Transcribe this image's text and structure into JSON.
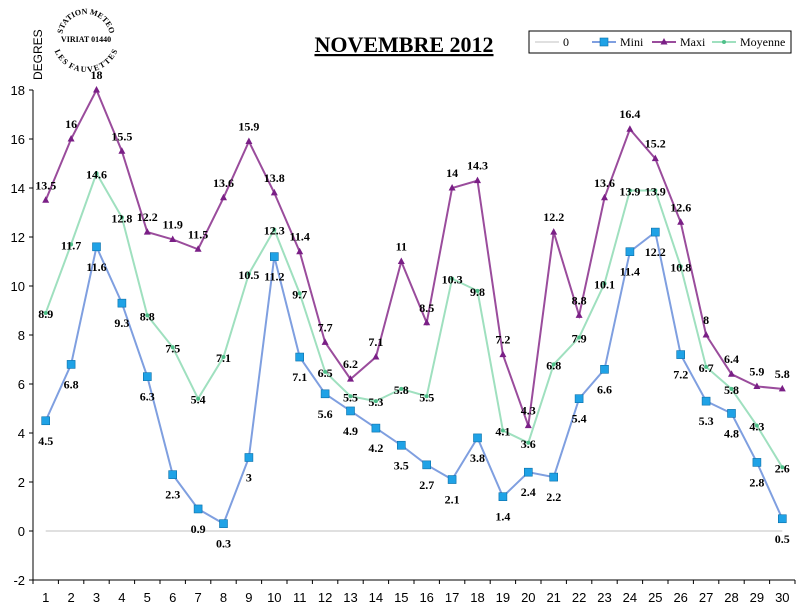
{
  "chart_data": {
    "type": "line",
    "title": "NOVEMBRE 2012",
    "ylabel": "DEGRES",
    "xlabel": "",
    "ylim": [
      -2,
      18
    ],
    "yticks": [
      -2,
      0,
      2,
      4,
      6,
      8,
      10,
      12,
      14,
      16,
      18
    ],
    "categories": [
      "1",
      "2",
      "3",
      "4",
      "5",
      "6",
      "7",
      "8",
      "9",
      "10",
      "11",
      "12",
      "13",
      "14",
      "15",
      "16",
      "17",
      "18",
      "19",
      "20",
      "21",
      "22",
      "23",
      "24",
      "25",
      "26",
      "27",
      "28",
      "29",
      "30"
    ],
    "legend_position": "top-right",
    "grid": false,
    "series": [
      {
        "name": "0",
        "color": "#c0c0c0",
        "marker": "none",
        "values": [
          0,
          0,
          0,
          0,
          0,
          0,
          0,
          0,
          0,
          0,
          0,
          0,
          0,
          0,
          0,
          0,
          0,
          0,
          0,
          0,
          0,
          0,
          0,
          0,
          0,
          0,
          0,
          0,
          0,
          0
        ],
        "show_labels": false
      },
      {
        "name": "Mini",
        "color": "#7f9fe0",
        "marker": "square",
        "marker_color": "#1fa2e6",
        "values": [
          4.5,
          6.8,
          11.6,
          9.3,
          6.3,
          2.3,
          0.9,
          0.3,
          3,
          11.2,
          7.1,
          5.6,
          4.9,
          4.2,
          3.5,
          2.7,
          2.1,
          3.8,
          1.4,
          2.4,
          2.2,
          5.4,
          6.6,
          11.4,
          12.2,
          7.2,
          5.3,
          4.8,
          2.8,
          0.5
        ],
        "show_labels": true
      },
      {
        "name": "Maxi",
        "color": "#9a4c9c",
        "marker": "triangle",
        "marker_color": "#7a1f86",
        "values": [
          13.5,
          16,
          18,
          15.5,
          12.2,
          11.9,
          11.5,
          13.6,
          15.9,
          13.8,
          11.4,
          7.7,
          6.2,
          7.1,
          11,
          8.5,
          14,
          14.3,
          7.2,
          4.3,
          12.2,
          8.8,
          13.6,
          16.4,
          15.2,
          12.6,
          8,
          6.4,
          5.9,
          5.8
        ],
        "show_labels": true
      },
      {
        "name": "Moyenne",
        "color": "#9fe0bf",
        "marker": "dot",
        "marker_color": "#4fc08a",
        "values": [
          8.9,
          11.7,
          14.6,
          12.8,
          8.8,
          7.5,
          5.4,
          7.1,
          10.5,
          12.3,
          9.7,
          6.5,
          5.5,
          5.3,
          5.8,
          5.5,
          10.3,
          9.8,
          4.1,
          3.6,
          6.8,
          7.9,
          10.1,
          13.9,
          13.9,
          10.8,
          6.7,
          5.8,
          4.3,
          2.6
        ],
        "show_labels": true
      }
    ]
  },
  "logo": {
    "lines": [
      "STATION METEO",
      "VIRIAT 01440",
      "LES FAUVETTES"
    ]
  }
}
